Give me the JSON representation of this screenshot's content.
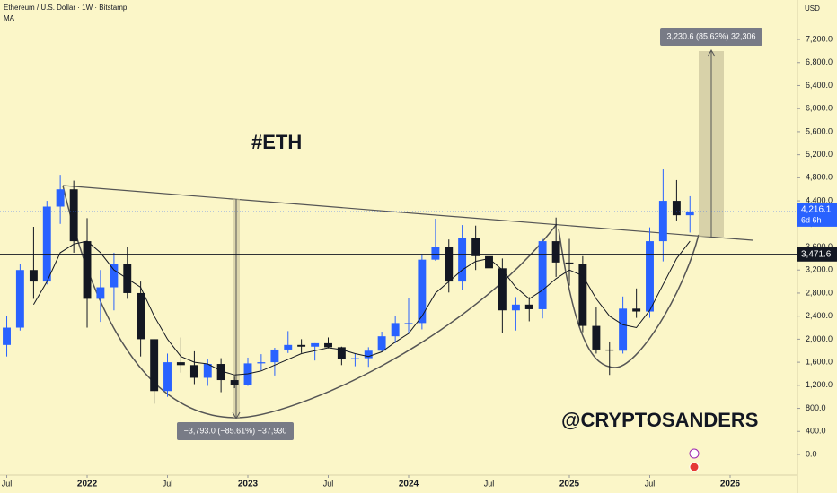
{
  "chart_data": {
    "type": "candlestick",
    "title": "Ethereum / U.S. Dollar · 1W · Bitstamp",
    "currency": "USD",
    "up_color": "#2962ff",
    "down_color": "#131722",
    "x": [
      2021.5,
      2021.583,
      2021.667,
      2021.75,
      2021.833,
      2021.917,
      2022.0,
      2022.083,
      2022.167,
      2022.25,
      2022.333,
      2022.417,
      2022.5,
      2022.583,
      2022.667,
      2022.75,
      2022.833,
      2022.917,
      2023.0,
      2023.083,
      2023.167,
      2023.25,
      2023.333,
      2023.417,
      2023.5,
      2023.583,
      2023.667,
      2023.75,
      2023.833,
      2023.917,
      2024.0,
      2024.083,
      2024.167,
      2024.25,
      2024.333,
      2024.417,
      2024.5,
      2024.583,
      2024.667,
      2024.75,
      2024.833,
      2024.917,
      2025.0,
      2025.083,
      2025.167,
      2025.25,
      2025.333,
      2025.417,
      2025.5,
      2025.583,
      2025.667,
      2025.75
    ],
    "open": [
      1900,
      2200,
      3200,
      3000,
      4300,
      4600,
      3700,
      2700,
      2900,
      3300,
      2800,
      2000,
      1100,
      1600,
      1550,
      1330,
      1570,
      1290,
      1200,
      1580,
      1600,
      1820,
      1900,
      1870,
      1930,
      1860,
      1650,
      1670,
      1800,
      2050,
      2280,
      2280,
      3380,
      3600,
      3000,
      3760,
      3440,
      3230,
      2500,
      2600,
      2520,
      3700,
      3330,
      3300,
      2230,
      1820,
      1800,
      2530,
      2480,
      3700,
      4400,
      4150
    ],
    "high": [
      2400,
      3300,
      3950,
      4400,
      4850,
      4750,
      4100,
      3200,
      3500,
      3600,
      3000,
      2000,
      1750,
      2030,
      1790,
      1660,
      1670,
      1350,
      1680,
      1740,
      1850,
      2140,
      2000,
      1930,
      2030,
      1870,
      1750,
      1860,
      2130,
      2410,
      2720,
      3480,
      4090,
      3730,
      3980,
      3970,
      3560,
      3400,
      2730,
      2730,
      3740,
      4110,
      3740,
      3440,
      2550,
      1960,
      2740,
      2880,
      3940,
      4950,
      4760,
      4480
    ],
    "low": [
      1700,
      2150,
      2700,
      2950,
      4000,
      3500,
      2200,
      2300,
      2500,
      2700,
      1700,
      880,
      1000,
      1420,
      1220,
      1190,
      1080,
      1150,
      1190,
      1460,
      1370,
      1760,
      1760,
      1630,
      1840,
      1550,
      1530,
      1520,
      1780,
      1930,
      2100,
      2170,
      3360,
      2810,
      2860,
      3200,
      2810,
      2110,
      2150,
      2310,
      2360,
      3080,
      2930,
      2120,
      1750,
      1380,
      1750,
      2370,
      2370,
      3350,
      4060,
      3850
    ],
    "close": [
      2200,
      3200,
      3000,
      4300,
      4600,
      3700,
      2700,
      2900,
      3300,
      2800,
      2000,
      1100,
      1600,
      1550,
      1330,
      1570,
      1290,
      1200,
      1580,
      1600,
      1820,
      1900,
      1870,
      1930,
      1860,
      1650,
      1670,
      1800,
      2050,
      2280,
      2280,
      3380,
      3600,
      3000,
      3760,
      3440,
      3230,
      2500,
      2600,
      2520,
      3700,
      3330,
      3300,
      2230,
      1820,
      1800,
      2530,
      2480,
      3700,
      4400,
      4150,
      4216.1
    ],
    "ma": {
      "name": "MA",
      "color": "#131722",
      "values": [
        null,
        null,
        2600,
        3000,
        3500,
        3650,
        3700,
        3500,
        3200,
        3050,
        2900,
        2400,
        2000,
        1700,
        1600,
        1570,
        1450,
        1380,
        1400,
        1450,
        1550,
        1650,
        1750,
        1800,
        1850,
        1820,
        1750,
        1700,
        1780,
        1950,
        2100,
        2400,
        2800,
        3000,
        3200,
        3350,
        3400,
        3200,
        2900,
        2700,
        2850,
        3050,
        3200,
        3100,
        2700,
        2400,
        2250,
        2200,
        2500,
        2950,
        3400,
        3700
      ]
    },
    "xlim": [
      2021.458,
      2026.419
    ],
    "xticks": [
      {
        "value": 2021.5,
        "label": "Jul"
      },
      2022,
      {
        "value": 2022.5,
        "label": "Jul"
      },
      2023,
      {
        "value": 2023.5,
        "label": "Jul"
      },
      2024,
      {
        "value": 2024.5,
        "label": "Jul"
      },
      2025,
      {
        "value": 2025.5,
        "label": "Jul"
      },
      2026
    ],
    "ylim": [
      -358,
      7885
    ],
    "yticks": [
      {
        "value": 0,
        "label": "0.0"
      },
      {
        "value": 400,
        "label": "400.0"
      },
      {
        "value": 800,
        "label": "800.0"
      },
      {
        "value": 1200,
        "label": "1,200.0"
      },
      {
        "value": 1600,
        "label": "1,600.0"
      },
      {
        "value": 2000,
        "label": "2,000.0"
      },
      {
        "value": 2400,
        "label": "2,400.0"
      },
      {
        "value": 2800,
        "label": "2,800.0"
      },
      {
        "value": 3200,
        "label": "3,200.0"
      },
      {
        "value": 3600,
        "label": "3,600.0"
      },
      {
        "value": 4000,
        "label": "4,000.0"
      },
      {
        "value": 4400,
        "label": "4,400.0"
      },
      {
        "value": 4800,
        "label": "4,800.0"
      },
      {
        "value": 5200,
        "label": "5,200.0"
      },
      {
        "value": 5600,
        "label": "5,600.0"
      },
      {
        "value": 6000,
        "label": "6,000.0"
      },
      {
        "value": 6400,
        "label": "6,400.0"
      },
      {
        "value": 6800,
        "label": "6,800.0"
      },
      {
        "value": 7200,
        "label": "7,200.0"
      }
    ],
    "last_price": {
      "value": 4216.1,
      "label": "4,216.1"
    },
    "countdown": "6d 6h",
    "level": {
      "value": 3471.6,
      "label": "3,471.6"
    },
    "annotations": [
      "#ETH",
      "@CRYPTOSANDERS"
    ],
    "measures": [
      "3,230.6 (85.63%) 32,306",
      "−3,793.0 (−85.61%) −37,930"
    ]
  }
}
